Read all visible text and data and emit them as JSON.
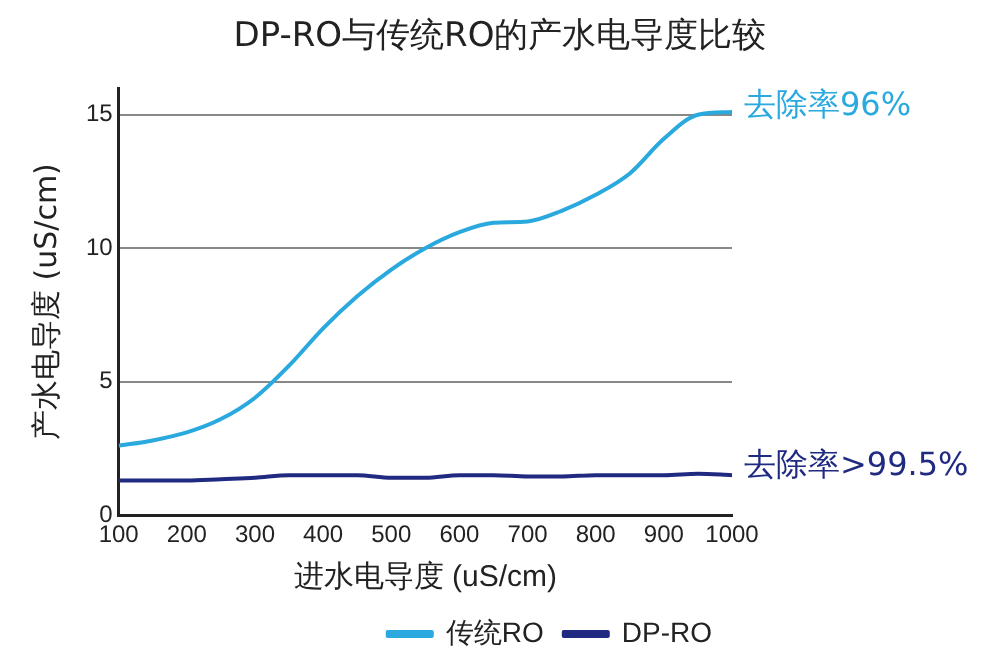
{
  "chart_data": {
    "type": "line",
    "title": "DP-RO与传统RO的产水电导度比较",
    "xlabel": "进水电导度 (uS/cm)",
    "ylabel": "产水电导度 (uS/cm)",
    "x": [
      100,
      150,
      200,
      250,
      300,
      350,
      400,
      450,
      500,
      550,
      600,
      650,
      700,
      750,
      800,
      850,
      900,
      950,
      1000
    ],
    "series": [
      {
        "name": "传统RO",
        "color": "#2aa9df",
        "values": [
          2.6,
          2.8,
          3.1,
          3.6,
          4.4,
          5.6,
          7.0,
          8.2,
          9.2,
          10.0,
          10.6,
          10.95,
          11.0,
          11.4,
          12.0,
          12.8,
          14.1,
          15.0,
          15.1
        ]
      },
      {
        "name": "DP-RO",
        "color": "#1f2a80",
        "values": [
          1.3,
          1.3,
          1.3,
          1.35,
          1.4,
          1.5,
          1.5,
          1.5,
          1.4,
          1.4,
          1.5,
          1.5,
          1.45,
          1.45,
          1.5,
          1.5,
          1.5,
          1.55,
          1.5
        ]
      }
    ],
    "xlim": [
      100,
      1000
    ],
    "xticks": [
      100,
      200,
      300,
      400,
      500,
      600,
      700,
      800,
      900,
      1000
    ],
    "ylim": [
      0,
      16
    ],
    "yticks": [
      0,
      5,
      10,
      15
    ],
    "grid": "y",
    "legend": "bottom right",
    "marker": "none",
    "line_style": "solid",
    "annotations": [
      {
        "text": "去除率96%",
        "x": 1000,
        "y": 15
      },
      {
        "text": "去除率>99.5%",
        "x": 1000,
        "y": 1.5
      }
    ]
  }
}
